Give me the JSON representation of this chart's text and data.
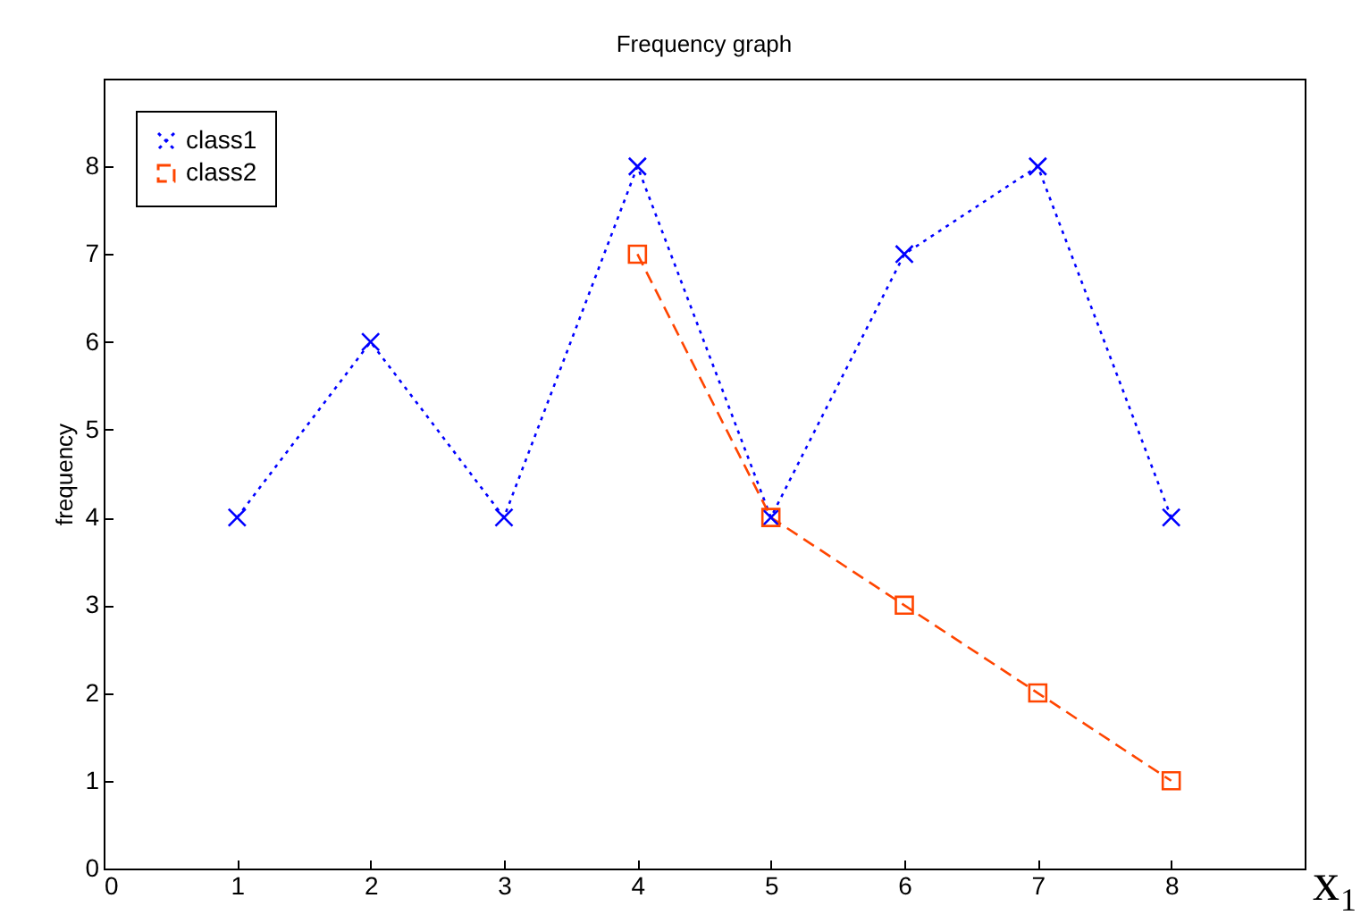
{
  "chart_data": {
    "type": "line",
    "title": "Frequency graph",
    "xlabel": "x₁",
    "ylabel": "frequency",
    "xlim": [
      0,
      9
    ],
    "xticks": [
      0,
      1,
      2,
      3,
      4,
      5,
      6,
      7,
      8
    ],
    "ylim": [
      0,
      9
    ],
    "yticks": [
      0,
      1,
      2,
      3,
      4,
      5,
      6,
      7,
      8
    ],
    "grid": false,
    "legend": "top left",
    "series": [
      {
        "name": "class1",
        "color": "#0000ff",
        "marker": "cross",
        "line_style": "dotted",
        "x": [
          1,
          2,
          3,
          4,
          5,
          6,
          7,
          8
        ],
        "values": [
          4,
          6,
          4,
          8,
          4,
          7,
          8,
          4
        ]
      },
      {
        "name": "class2",
        "color": "#ff4500",
        "marker": "square",
        "line_style": "dashed",
        "x": [
          4,
          5,
          6,
          7,
          8
        ],
        "values": [
          7,
          4,
          3,
          2,
          1
        ]
      }
    ]
  }
}
